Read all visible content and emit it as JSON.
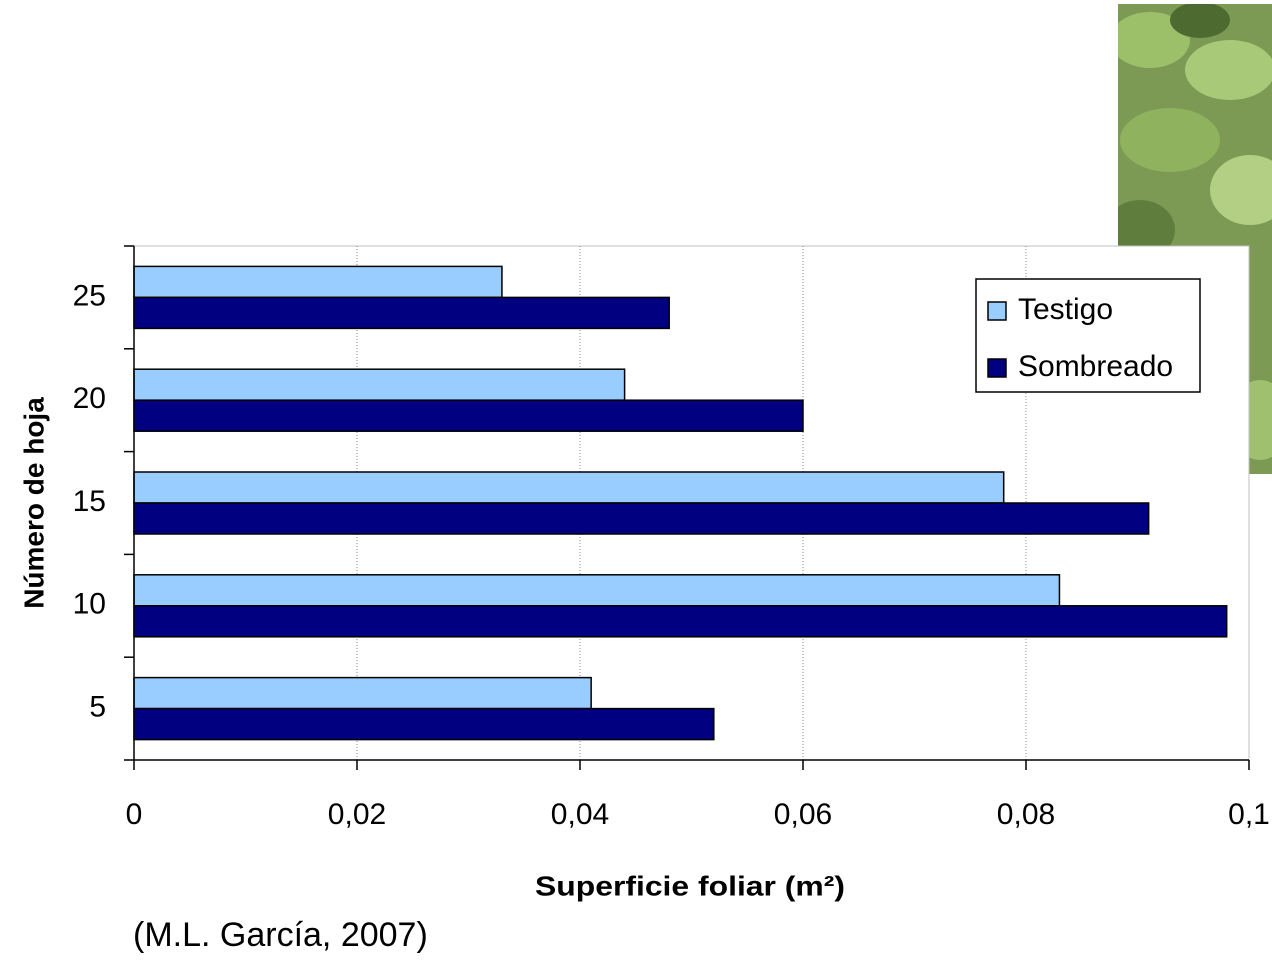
{
  "chart_data": {
    "type": "hbar",
    "x_label": "Superficie foliar (m²)",
    "y_label": "Número de hoja",
    "source": "(M.L. García, 2007)",
    "categories": [
      "5",
      "10",
      "15",
      "20",
      "25"
    ],
    "series": [
      {
        "name": "Testigo",
        "color": "#99ccff",
        "values": [
          0.041,
          0.083,
          0.078,
          0.044,
          0.033
        ]
      },
      {
        "name": "Sombreado",
        "color": "#000080",
        "values": [
          0.052,
          0.098,
          0.091,
          0.06,
          0.048
        ]
      }
    ],
    "xlim": [
      0,
      0.1
    ],
    "xticks": [
      0,
      {
        "value": 0.02,
        "label": "0,02"
      },
      {
        "value": 0.04,
        "label": "0,04"
      },
      {
        "value": 0.06,
        "label": "0,06"
      },
      {
        "value": 0.08,
        "label": "0,08"
      },
      {
        "value": 0.1,
        "label": "0,1"
      }
    ],
    "grid": true,
    "legend": "upper right"
  }
}
